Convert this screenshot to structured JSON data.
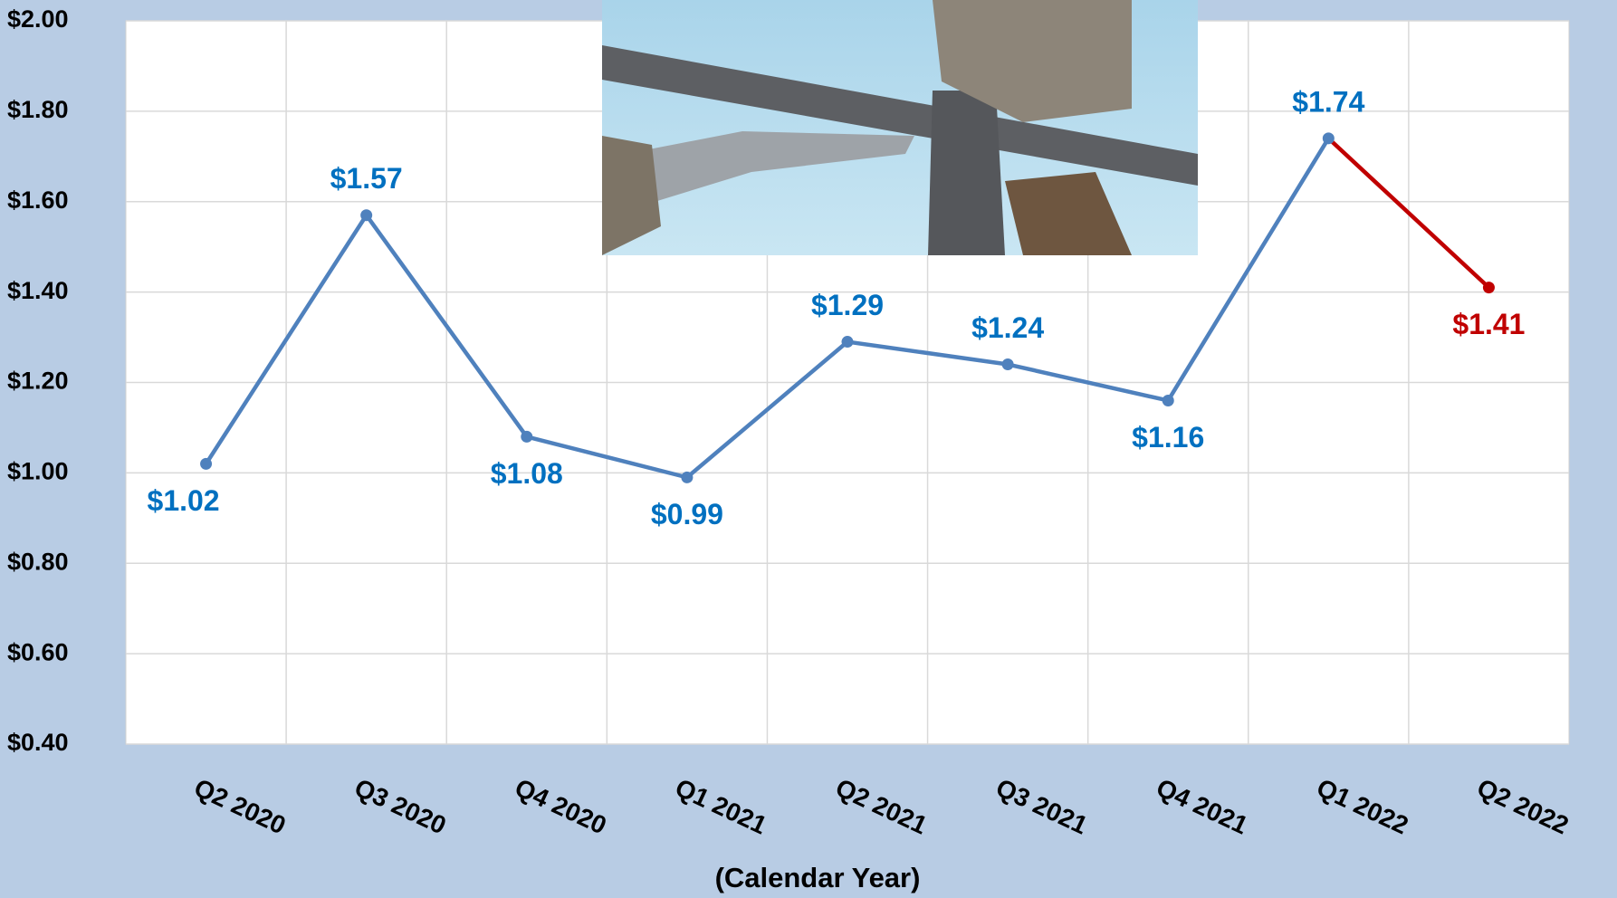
{
  "chart_data": {
    "type": "line",
    "x_label": "(Calendar Year)",
    "categories": [
      "Q2 2020",
      "Q3 2020",
      "Q4 2020",
      "Q1 2021",
      "Q2 2021",
      "Q3 2021",
      "Q4 2021",
      "Q1 2022",
      "Q2 2022"
    ],
    "series": [
      {
        "values": [
          1.02,
          1.57,
          1.08,
          0.99,
          1.29,
          1.24,
          1.16,
          1.74,
          1.41
        ],
        "value_labels": [
          "$1.02",
          "$1.57",
          "$1.08",
          "$0.99",
          "$1.29",
          "$1.24",
          "$1.16",
          "$1.74",
          "$1.41"
        ],
        "point_colors": [
          "#4f81bd",
          "#4f81bd",
          "#4f81bd",
          "#4f81bd",
          "#4f81bd",
          "#4f81bd",
          "#4f81bd",
          "#4f81bd",
          "#c00000"
        ],
        "label_colors": [
          "#0070c0",
          "#0070c0",
          "#0070c0",
          "#0070c0",
          "#0070c0",
          "#0070c0",
          "#0070c0",
          "#0070c0",
          "#c00000"
        ]
      }
    ],
    "ylim": [
      0.4,
      2.0
    ],
    "yticks": [
      {
        "value": 0.4,
        "label": "$0.40"
      },
      {
        "value": 0.6,
        "label": "$0.60"
      },
      {
        "value": 0.8,
        "label": "$0.80"
      },
      {
        "value": 1.0,
        "label": "$1.00"
      },
      {
        "value": 1.2,
        "label": "$1.20"
      },
      {
        "value": 1.4,
        "label": "$1.40"
      },
      {
        "value": 1.6,
        "label": "$1.60"
      },
      {
        "value": 1.8,
        "label": "$1.80"
      },
      {
        "value": 2.0,
        "label": "$2.00"
      }
    ],
    "grid": true
  }
}
